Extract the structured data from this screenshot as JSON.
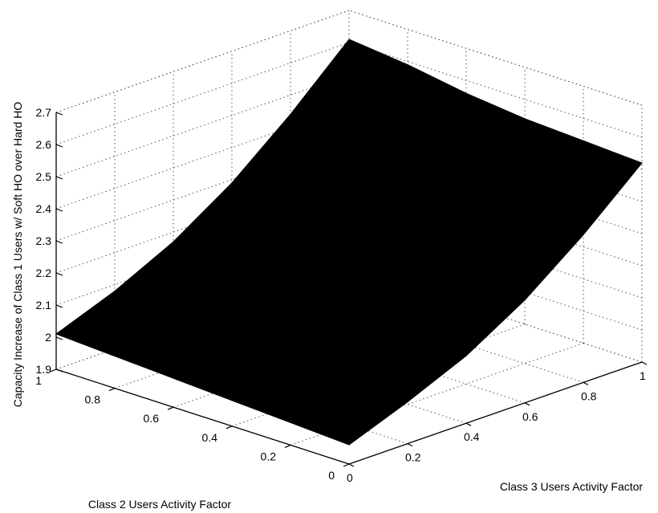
{
  "chart_data": {
    "type": "surface",
    "title": "",
    "xlabel": "Class 2 Users Activity Factor",
    "ylabel": "Class 3 Users Activity Factor",
    "zlabel": "Capacity Increase of Class 1 Users w/ Soft HO over Hard HO",
    "xlim": [
      0,
      1
    ],
    "ylim": [
      0,
      1
    ],
    "zlim": [
      1.9,
      2.7
    ],
    "grid": true,
    "x_ticks": [
      0,
      0.2,
      0.4,
      0.6,
      0.8,
      1
    ],
    "x_tick_labels": [
      "0",
      "0.2",
      "0.4",
      "0.6",
      "0.8",
      "1"
    ],
    "y_ticks": [
      0,
      0.2,
      0.4,
      0.6,
      0.8,
      1
    ],
    "y_tick_labels": [
      "0",
      "0.2",
      "0.4",
      "0.6",
      "0.8",
      "1"
    ],
    "z_ticks": [
      1.9,
      2,
      2.1,
      2.2,
      2.3,
      2.4,
      2.5,
      2.6,
      2.7
    ],
    "z_tick_labels": [
      "1.9",
      "2",
      "2.1",
      "2.2",
      "2.3",
      "2.4",
      "2.5",
      "2.6",
      "2.7"
    ],
    "surface_color": "#000000",
    "x": [
      0,
      0.2,
      0.4,
      0.6,
      0.8,
      1
    ],
    "y": [
      0,
      0.2,
      0.4,
      0.6,
      0.8,
      1
    ],
    "z": [
      [
        1.96,
        2.03,
        2.11,
        2.22,
        2.36,
        2.52
      ],
      [
        1.97,
        2.04,
        2.12,
        2.23,
        2.37,
        2.53
      ],
      [
        1.98,
        2.05,
        2.13,
        2.24,
        2.38,
        2.54
      ],
      [
        1.99,
        2.06,
        2.15,
        2.26,
        2.4,
        2.56
      ],
      [
        2.0,
        2.07,
        2.16,
        2.27,
        2.42,
        2.59
      ],
      [
        2.01,
        2.08,
        2.17,
        2.29,
        2.44,
        2.61
      ]
    ]
  }
}
